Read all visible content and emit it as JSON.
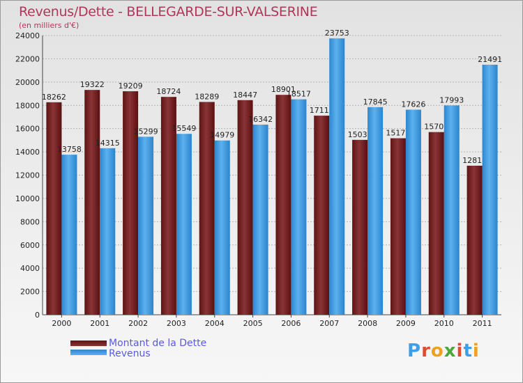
{
  "title": "Revenus/Dette - BELLEGARDE-SUR-VALSERINE",
  "subtitle": "(en milliers d'€)",
  "logo": "Proxiti",
  "colors": {
    "dette": "#7a2a2e",
    "revenus": "#3f9fe6",
    "title": "#b0365a",
    "legend_text": "#5a5ae0"
  },
  "chart_data": {
    "type": "bar",
    "categories": [
      "2000",
      "2001",
      "2002",
      "2003",
      "2004",
      "2005",
      "2006",
      "2007",
      "2008",
      "2009",
      "2010",
      "2011"
    ],
    "series": [
      {
        "name": "Montant de la Dette",
        "values": [
          18262,
          19322,
          19209,
          18724,
          18289,
          18447,
          18901,
          17111,
          15031,
          15171,
          15701,
          12811
        ],
        "labels": [
          "18262",
          "19322",
          "19209",
          "18724",
          "18289",
          "18447",
          "18901",
          "17111",
          "15031",
          "15171",
          "15701",
          "12811"
        ]
      },
      {
        "name": "Revenus",
        "values": [
          13758,
          14315,
          15299,
          15549,
          14979,
          16342,
          18517,
          23753,
          17845,
          17626,
          17993,
          21491
        ],
        "labels": [
          "13758",
          "14315",
          "15299",
          "15549",
          "14979",
          "16342",
          "18517",
          "23753",
          "17845",
          "17626",
          "17993",
          "21491"
        ]
      }
    ],
    "ylim": [
      0,
      24000
    ],
    "yticks": [
      0,
      2000,
      4000,
      6000,
      8000,
      10000,
      12000,
      14000,
      16000,
      18000,
      20000,
      22000,
      24000
    ],
    "grid": true,
    "legend_position": "bottom-left"
  }
}
